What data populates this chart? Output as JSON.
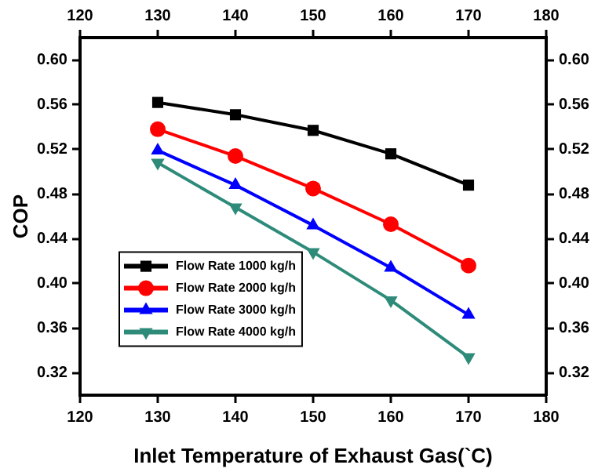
{
  "chart_data": {
    "type": "line",
    "xlabel": "Inlet Temperature of Exhaust Gas(`C)",
    "ylabel": "COP",
    "x": [
      130,
      140,
      150,
      160,
      170
    ],
    "series": [
      {
        "name": "Flow Rate 1000 kg/h",
        "color": "#000000",
        "marker": "square",
        "values": [
          0.562,
          0.551,
          0.537,
          0.516,
          0.488
        ]
      },
      {
        "name": "Flow Rate 2000 kg/h",
        "color": "#ff0000",
        "marker": "circle",
        "values": [
          0.538,
          0.514,
          0.485,
          0.453,
          0.416
        ]
      },
      {
        "name": "Flow Rate 3000 kg/h",
        "color": "#0000ff",
        "marker": "triangle",
        "values": [
          0.519,
          0.488,
          0.452,
          0.414,
          0.372
        ]
      },
      {
        "name": "Flow Rate 4000 kg/h",
        "color": "#2e8b7a",
        "marker": "triangle_down",
        "values": [
          0.508,
          0.468,
          0.428,
          0.385,
          0.334
        ]
      }
    ],
    "xlim": [
      120,
      180
    ],
    "xticks": [
      120,
      130,
      140,
      150,
      160,
      170,
      180
    ],
    "x2lim": [
      120,
      180
    ],
    "x2ticks": [
      120,
      130,
      140,
      150,
      160,
      170,
      180
    ],
    "ylim": [
      0.3,
      0.62
    ],
    "yticks": [
      {
        "value": 0.32,
        "label": "0.32"
      },
      {
        "value": 0.36,
        "label": "0.36"
      },
      {
        "value": 0.4,
        "label": "0.40"
      },
      {
        "value": 0.44,
        "label": "0.44"
      },
      {
        "value": 0.48,
        "label": "0.48"
      },
      {
        "value": 0.52,
        "label": "0.52"
      },
      {
        "value": 0.56,
        "label": "0.56"
      },
      {
        "value": 0.6,
        "label": "0.60"
      }
    ],
    "y2lim": [
      0.3,
      0.62
    ],
    "y2ticks": [
      {
        "value": 0.32,
        "label": "0.32"
      },
      {
        "value": 0.36,
        "label": "0.36"
      },
      {
        "value": 0.4,
        "label": "0.40"
      },
      {
        "value": 0.44,
        "label": "0.44"
      },
      {
        "value": 0.48,
        "label": "0.48"
      },
      {
        "value": 0.52,
        "label": "0.52"
      },
      {
        "value": 0.56,
        "label": "0.56"
      },
      {
        "value": 0.6,
        "label": "0.60"
      }
    ],
    "grid": false,
    "legend": "left",
    "line_style": "solid"
  }
}
